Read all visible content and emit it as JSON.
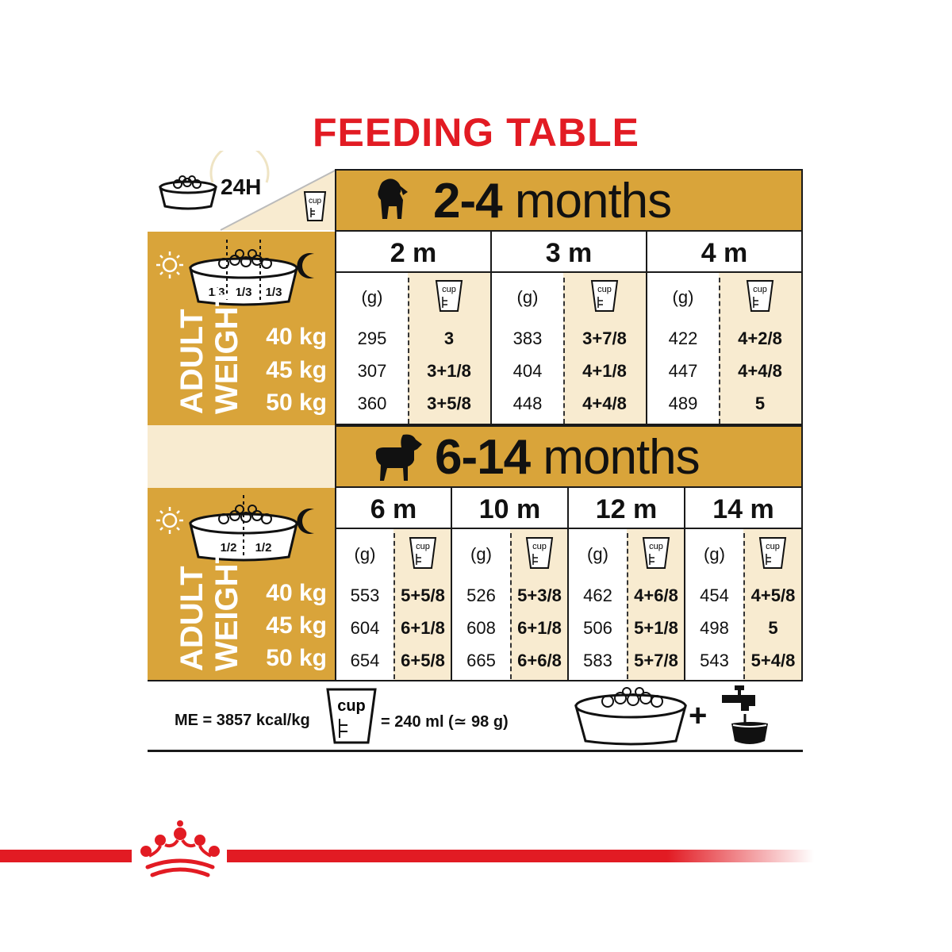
{
  "title": "FEEDING TABLE",
  "period_label": "24H",
  "cup_label": "cup",
  "section1": {
    "heading_num": "2-4",
    "heading_word": "months",
    "bowl_fractions": [
      "1/3",
      "1/3",
      "1/3"
    ],
    "months": [
      {
        "label": "2 m",
        "grams": [
          "295",
          "307",
          "360"
        ],
        "cups": [
          "3",
          "3+1/8",
          "3+5/8"
        ]
      },
      {
        "label": "3 m",
        "grams": [
          "383",
          "404",
          "448"
        ],
        "cups": [
          "3+7/8",
          "4+1/8",
          "4+4/8"
        ]
      },
      {
        "label": "4 m",
        "grams": [
          "422",
          "447",
          "489"
        ],
        "cups": [
          "4+2/8",
          "4+4/8",
          "5"
        ]
      }
    ]
  },
  "section2": {
    "heading_num": "6-14",
    "heading_word": "months",
    "bowl_fractions": [
      "1/2",
      "1/2"
    ],
    "months": [
      {
        "label": "6 m",
        "grams": [
          "553",
          "604",
          "654"
        ],
        "cups": [
          "5+5/8",
          "6+1/8",
          "6+5/8"
        ]
      },
      {
        "label": "10 m",
        "grams": [
          "526",
          "608",
          "665"
        ],
        "cups": [
          "5+3/8",
          "6+1/8",
          "6+6/8"
        ]
      },
      {
        "label": "12 m",
        "grams": [
          "462",
          "506",
          "583"
        ],
        "cups": [
          "4+6/8",
          "5+1/8",
          "5+7/8"
        ]
      },
      {
        "label": "14 m",
        "grams": [
          "454",
          "498",
          "543"
        ],
        "cups": [
          "4+5/8",
          "5",
          "5+4/8"
        ]
      }
    ]
  },
  "grams_header": "(g)",
  "adult_label": "ADULT",
  "weight_label": "WEIGHT",
  "weights": [
    "40 kg",
    "45 kg",
    "50 kg"
  ],
  "footer": {
    "energy": "ME = 3857 kcal/kg",
    "cup_equiv": "= 240 ml (≃ 98 g)",
    "plus": "+"
  },
  "colors": {
    "gold": "#d9a43a",
    "cream": "#f8ebd0",
    "red": "#e21b23"
  },
  "icons": [
    "bowl-icon",
    "clock-icon",
    "cup-icon",
    "puppy-icon",
    "dog-icon",
    "sun-icon",
    "moon-icon",
    "water-tap-icon",
    "crown-logo"
  ]
}
